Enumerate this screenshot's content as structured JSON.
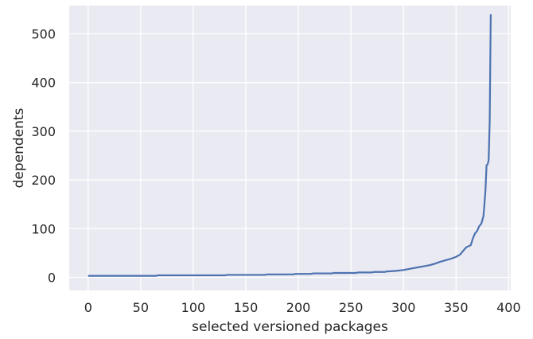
{
  "chart_data": {
    "type": "line",
    "title": "",
    "xlabel": "selected versioned packages",
    "ylabel": "dependents",
    "xlim": [
      -18,
      402
    ],
    "ylim": [
      -27,
      558
    ],
    "grid": true,
    "background_color": "#eaeaf2",
    "grid_color": "#ffffff",
    "line_color": "#4c72b0",
    "x_ticks": [
      0,
      50,
      100,
      150,
      200,
      250,
      300,
      350,
      400
    ],
    "y_ticks": [
      0,
      100,
      200,
      300,
      400,
      500
    ],
    "series": [
      {
        "x": [
          0,
          65,
          66,
          130,
          132,
          168,
          170,
          195,
          197,
          212,
          214,
          232,
          234,
          255,
          257,
          270,
          272,
          282,
          284,
          292,
          300,
          305,
          310,
          315,
          320,
          325,
          330,
          335,
          340,
          345,
          350,
          354,
          357,
          359,
          360,
          362,
          364,
          366,
          368,
          370,
          371,
          372,
          374,
          376,
          377,
          378,
          379,
          380,
          381,
          382,
          383
        ],
        "y": [
          3,
          3,
          4,
          4,
          5,
          5,
          6,
          6,
          7,
          7,
          8,
          8,
          9,
          9,
          10,
          10,
          11,
          11,
          12,
          13,
          15,
          17,
          19,
          21,
          23,
          25,
          28,
          32,
          35,
          38,
          42,
          47,
          55,
          60,
          62,
          64,
          66,
          80,
          90,
          95,
          100,
          105,
          110,
          125,
          150,
          180,
          230,
          232,
          240,
          320,
          540
        ]
      }
    ]
  }
}
